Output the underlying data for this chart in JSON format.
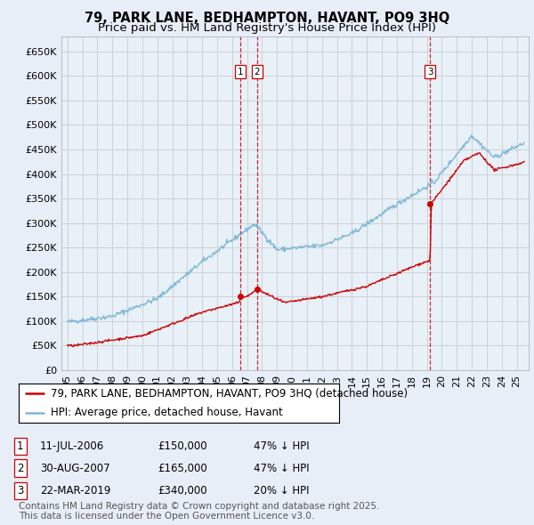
{
  "title": "79, PARK LANE, BEDHAMPTON, HAVANT, PO9 3HQ",
  "subtitle": "Price paid vs. HM Land Registry's House Price Index (HPI)",
  "background_color": "#e8eef8",
  "plot_bg_color": "#e8f0f8",
  "ylim": [
    0,
    680000
  ],
  "yticks": [
    0,
    50000,
    100000,
    150000,
    200000,
    250000,
    300000,
    350000,
    400000,
    450000,
    500000,
    550000,
    600000,
    650000
  ],
  "ytick_labels": [
    "£0",
    "£50K",
    "£100K",
    "£150K",
    "£200K",
    "£250K",
    "£300K",
    "£350K",
    "£400K",
    "£450K",
    "£500K",
    "£550K",
    "£600K",
    "£650K"
  ],
  "xlim_start": 1994.6,
  "xlim_end": 2025.8,
  "hpi_color": "#7db8d8",
  "price_color": "#cc0000",
  "transaction_marker_color": "#cc0000",
  "transactions": [
    {
      "date": 2006.53,
      "price": 150000,
      "label": "1"
    },
    {
      "date": 2007.66,
      "price": 165000,
      "label": "2"
    },
    {
      "date": 2019.22,
      "price": 340000,
      "label": "3"
    }
  ],
  "vline_color": "#cc0000",
  "vline_style": "--",
  "legend_label_price": "79, PARK LANE, BEDHAMPTON, HAVANT, PO9 3HQ (detached house)",
  "legend_label_hpi": "HPI: Average price, detached house, Havant",
  "table_entries": [
    {
      "num": "1",
      "date": "11-JUL-2006",
      "price": "£150,000",
      "pct": "47% ↓ HPI"
    },
    {
      "num": "2",
      "date": "30-AUG-2007",
      "price": "£165,000",
      "pct": "47% ↓ HPI"
    },
    {
      "num": "3",
      "date": "22-MAR-2019",
      "price": "£340,000",
      "pct": "20% ↓ HPI"
    }
  ],
  "footnote": "Contains HM Land Registry data © Crown copyright and database right 2025.\nThis data is licensed under the Open Government Licence v3.0.",
  "title_fontsize": 10.5,
  "subtitle_fontsize": 9.5,
  "tick_fontsize": 8,
  "legend_fontsize": 8.5,
  "table_fontsize": 8.5,
  "footnote_fontsize": 7.5
}
